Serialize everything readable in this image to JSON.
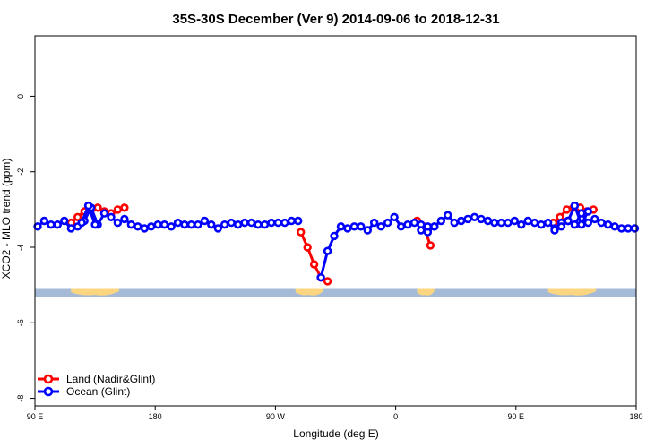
{
  "chart_data": {
    "type": "line",
    "title": "35S-30S December (Ver 9)   2014-09-06 to 2018-12-31",
    "xlabel": "Longitude (deg E)",
    "ylabel": "XCO2 - MLO trend (ppm)",
    "x_ticks": [
      {
        "value": 90,
        "label": "90 E"
      },
      {
        "value": 180,
        "label": "180"
      },
      {
        "value": 270,
        "label": "90 W"
      },
      {
        "value": 360,
        "label": "0"
      },
      {
        "value": 450,
        "label": "90 E"
      },
      {
        "value": 540,
        "label": "180"
      }
    ],
    "y_ticks": [
      0,
      -2,
      -4,
      -6,
      -8
    ],
    "xlim": [
      90,
      540
    ],
    "ylim": [
      -8.2,
      1.6
    ],
    "grid": false,
    "legend_position": "bottom-left",
    "land_ocean_band": {
      "y_range": [
        -5.32,
        -5.08
      ],
      "ocean_color": "#a4bad7",
      "land_color": "#fbd580",
      "land_segments": [
        [
          117,
          153
        ],
        [
          285,
          306
        ],
        [
          376,
          389
        ],
        [
          474,
          510
        ]
      ]
    },
    "series": [
      {
        "name": "Land (Nadir&Glint)",
        "color": "#ff0000",
        "segments": [
          {
            "x": [
              117,
              122,
              127,
              132,
              137,
              142,
              147,
              152,
              157
            ],
            "y": [
              -3.35,
              -3.2,
              -3.05,
              -3.0,
              -2.95,
              -3.05,
              -3.1,
              -3.0,
              -2.95
            ]
          },
          {
            "x": [
              289,
              294,
              299,
              304,
              309
            ],
            "y": [
              -3.6,
              -4.0,
              -4.45,
              -4.8,
              -4.9
            ]
          },
          {
            "x": [
              376,
              381,
              386
            ],
            "y": [
              -3.3,
              -3.45,
              -3.95
            ]
          },
          {
            "x": [
              478,
              483,
              488,
              493,
              498,
              503,
              508
            ],
            "y": [
              -3.35,
              -3.2,
              -3.0,
              -2.95,
              -2.95,
              -3.05,
              -3.0
            ]
          }
        ]
      },
      {
        "name": "Ocean (Glint)",
        "color": "#0000ff",
        "segments": [
          {
            "x": [
              92,
              97,
              102,
              107,
              112,
              117,
              122,
              127,
              132,
              137,
              142,
              147,
              152,
              157,
              162,
              167,
              172,
              177,
              182,
              187,
              192,
              197,
              202,
              207,
              212,
              217,
              222,
              227,
              232,
              237,
              242,
              247,
              252,
              257,
              262,
              267,
              272,
              277,
              282,
              287
            ],
            "y": [
              -3.45,
              -3.3,
              -3.4,
              -3.4,
              -3.3,
              -3.5,
              -3.45,
              -3.3,
              -2.95,
              -3.4,
              -3.1,
              -3.2,
              -3.35,
              -3.25,
              -3.4,
              -3.45,
              -3.5,
              -3.45,
              -3.4,
              -3.4,
              -3.45,
              -3.35,
              -3.4,
              -3.4,
              -3.4,
              -3.3,
              -3.4,
              -3.5,
              -3.4,
              -3.35,
              -3.4,
              -3.35,
              -3.35,
              -3.4,
              -3.4,
              -3.35,
              -3.35,
              -3.35,
              -3.3,
              -3.3
            ]
          },
          {
            "x": [
              304,
              309,
              314,
              319,
              324,
              329,
              334,
              339,
              344,
              349,
              354,
              359,
              364,
              369,
              374,
              379,
              384,
              389,
              394,
              399,
              404,
              409,
              414,
              419,
              424,
              429,
              434,
              439,
              444,
              449,
              454,
              459,
              464,
              469,
              474,
              479,
              484,
              489,
              494,
              499,
              504,
              509,
              514,
              519,
              524,
              529,
              534,
              539
            ],
            "y": [
              -4.8,
              -4.1,
              -3.7,
              -3.45,
              -3.5,
              -3.45,
              -3.45,
              -3.55,
              -3.35,
              -3.45,
              -3.35,
              -3.2,
              -3.45,
              -3.4,
              -3.35,
              -3.4,
              -3.6,
              -3.45,
              -3.3,
              -3.15,
              -3.35,
              -3.3,
              -3.25,
              -3.2,
              -3.25,
              -3.3,
              -3.35,
              -3.35,
              -3.35,
              -3.3,
              -3.4,
              -3.3,
              -3.35,
              -3.4,
              -3.35,
              -3.5,
              -3.35,
              -3.3,
              -3.4,
              -3.1,
              -3.35,
              -3.25,
              -3.35,
              -3.4,
              -3.45,
              -3.5,
              -3.5,
              -3.5
            ]
          },
          {
            "x": [
              125,
              130,
              135
            ],
            "y": [
              -3.35,
              -2.9,
              -3.4
            ]
          },
          {
            "x": [
              379,
              384,
              389
            ],
            "y": [
              -3.55,
              -3.45,
              -3.45
            ]
          },
          {
            "x": [
              479,
              484,
              489,
              494,
              499,
              504
            ],
            "y": [
              -3.55,
              -3.45,
              -3.3,
              -2.9,
              -3.4,
              -3.05
            ]
          }
        ]
      }
    ]
  }
}
